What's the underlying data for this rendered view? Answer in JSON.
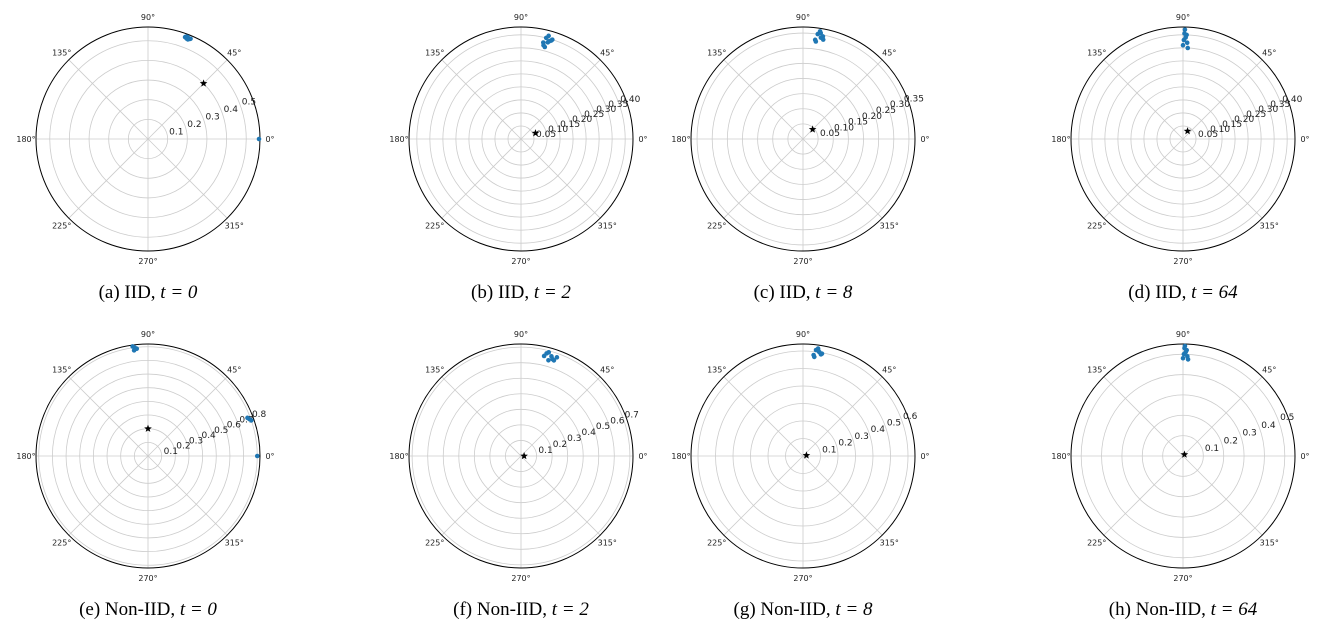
{
  "style": {
    "point_color": "#1f77b4",
    "center_color": "#000000",
    "grid_color": "#cccccc"
  },
  "angle_labels": [
    "0°",
    "45°",
    "90°",
    "135°",
    "180°",
    "225°",
    "270°",
    "315°"
  ],
  "chart_data": [
    {
      "type": "scatter",
      "projection": "polar",
      "caption_prefix": "(a) IID, ",
      "caption_t": "t = 0",
      "rlim": [
        0,
        0.57
      ],
      "rticks": [
        0.1,
        0.2,
        0.3,
        0.4,
        0.5
      ],
      "rtick_labels": [
        "0.1",
        "0.2",
        "0.3",
        "0.4",
        "0.5"
      ],
      "rlabel_angle_deg": 22.5,
      "grid": true,
      "center": {
        "theta_deg": 45,
        "r": 0.4
      },
      "points": [
        {
          "theta_deg": 68,
          "r": 0.55
        },
        {
          "theta_deg": 68.5,
          "r": 0.553
        },
        {
          "theta_deg": 69,
          "r": 0.548
        },
        {
          "theta_deg": 67.5,
          "r": 0.551
        },
        {
          "theta_deg": 69.5,
          "r": 0.556
        },
        {
          "theta_deg": 68.2,
          "r": 0.546
        },
        {
          "theta_deg": 70,
          "r": 0.552
        },
        {
          "theta_deg": 67,
          "r": 0.554
        },
        {
          "theta_deg": 68.8,
          "r": 0.557
        },
        {
          "theta_deg": 0,
          "r": 0.565
        }
      ]
    },
    {
      "type": "scatter",
      "projection": "polar",
      "caption_prefix": "(b) IID, ",
      "caption_t": "t = 2",
      "rlim": [
        0,
        0.43
      ],
      "rticks": [
        0.05,
        0.1,
        0.15,
        0.2,
        0.25,
        0.3,
        0.35,
        0.4
      ],
      "rtick_labels": [
        "0.05",
        "0.10",
        "0.15",
        "0.20",
        "0.25",
        "0.30",
        "0.35",
        "0.40"
      ],
      "rlabel_angle_deg": 22.5,
      "grid": true,
      "center": {
        "theta_deg": 22,
        "r": 0.06
      },
      "points": [
        {
          "theta_deg": 76,
          "r": 0.4
        },
        {
          "theta_deg": 74,
          "r": 0.39
        },
        {
          "theta_deg": 77,
          "r": 0.38
        },
        {
          "theta_deg": 75,
          "r": 0.41
        },
        {
          "theta_deg": 73,
          "r": 0.395
        },
        {
          "theta_deg": 76.5,
          "r": 0.37
        },
        {
          "theta_deg": 74.5,
          "r": 0.385
        },
        {
          "theta_deg": 72.5,
          "r": 0.4
        },
        {
          "theta_deg": 75.5,
          "r": 0.365
        }
      ]
    },
    {
      "type": "scatter",
      "projection": "polar",
      "caption_prefix": "(c) IID, ",
      "caption_t": "t = 8",
      "rlim": [
        0,
        0.37
      ],
      "rticks": [
        0.05,
        0.1,
        0.15,
        0.2,
        0.25,
        0.3,
        0.35
      ],
      "rtick_labels": [
        "0.05",
        "0.10",
        "0.15",
        "0.20",
        "0.25",
        "0.30",
        "0.35"
      ],
      "rlabel_angle_deg": 22.5,
      "grid": true,
      "center": {
        "theta_deg": 45,
        "r": 0.045
      },
      "points": [
        {
          "theta_deg": 82,
          "r": 0.35
        },
        {
          "theta_deg": 80,
          "r": 0.34
        },
        {
          "theta_deg": 83,
          "r": 0.33
        },
        {
          "theta_deg": 81,
          "r": 0.36
        },
        {
          "theta_deg": 79,
          "r": 0.345
        },
        {
          "theta_deg": 82.5,
          "r": 0.325
        },
        {
          "theta_deg": 80.5,
          "r": 0.355
        },
        {
          "theta_deg": 78.5,
          "r": 0.335
        }
      ]
    },
    {
      "type": "scatter",
      "projection": "polar",
      "caption_prefix": "(d) IID, ",
      "caption_t": "t = 64",
      "rlim": [
        0,
        0.43
      ],
      "rticks": [
        0.05,
        0.1,
        0.15,
        0.2,
        0.25,
        0.3,
        0.35,
        0.4
      ],
      "rtick_labels": [
        "0.05",
        "0.10",
        "0.15",
        "0.20",
        "0.25",
        "0.30",
        "0.35",
        "0.40"
      ],
      "rlabel_angle_deg": 22.5,
      "grid": true,
      "center": {
        "theta_deg": 60,
        "r": 0.035
      },
      "points": [
        {
          "theta_deg": 89,
          "r": 0.42
        },
        {
          "theta_deg": 88,
          "r": 0.4
        },
        {
          "theta_deg": 89.5,
          "r": 0.38
        },
        {
          "theta_deg": 87.5,
          "r": 0.37
        },
        {
          "theta_deg": 88.5,
          "r": 0.39
        },
        {
          "theta_deg": 90,
          "r": 0.36
        },
        {
          "theta_deg": 87,
          "r": 0.35
        },
        {
          "theta_deg": 89.2,
          "r": 0.405
        }
      ]
    },
    {
      "type": "scatter",
      "projection": "polar",
      "caption_prefix": "(e) Non-IID, ",
      "caption_t": "t = 0",
      "rlim": [
        0,
        0.82
      ],
      "rticks": [
        0.1,
        0.2,
        0.3,
        0.4,
        0.5,
        0.6,
        0.7,
        0.8
      ],
      "rtick_labels": [
        "0.1",
        "0.2",
        "0.3",
        "0.4",
        "0.5",
        "0.6",
        "0.7",
        "0.8"
      ],
      "rlabel_angle_deg": 22.5,
      "grid": true,
      "center": {
        "theta_deg": 90,
        "r": 0.2
      },
      "points": [
        {
          "theta_deg": 97,
          "r": 0.8
        },
        {
          "theta_deg": 96,
          "r": 0.79
        },
        {
          "theta_deg": 97.5,
          "r": 0.78
        },
        {
          "theta_deg": 98,
          "r": 0.81
        },
        {
          "theta_deg": 20,
          "r": 0.79
        },
        {
          "theta_deg": 19,
          "r": 0.8
        },
        {
          "theta_deg": 21,
          "r": 0.78
        },
        {
          "theta_deg": 0,
          "r": 0.8
        }
      ]
    },
    {
      "type": "scatter",
      "projection": "polar",
      "caption_prefix": "(f) Non-IID, ",
      "caption_t": "t = 2",
      "rlim": [
        0,
        0.72
      ],
      "rticks": [
        0.1,
        0.2,
        0.3,
        0.4,
        0.5,
        0.6,
        0.7
      ],
      "rtick_labels": [
        "0.1",
        "0.2",
        "0.3",
        "0.4",
        "0.5",
        "0.6",
        "0.7"
      ],
      "rlabel_angle_deg": 22.5,
      "grid": true,
      "center": {
        "theta_deg": 0,
        "r": 0.02
      },
      "points": [
        {
          "theta_deg": 76,
          "r": 0.68
        },
        {
          "theta_deg": 73,
          "r": 0.67
        },
        {
          "theta_deg": 71,
          "r": 0.65
        },
        {
          "theta_deg": 74,
          "r": 0.64
        },
        {
          "theta_deg": 77,
          "r": 0.66
        },
        {
          "theta_deg": 70,
          "r": 0.675
        },
        {
          "theta_deg": 75,
          "r": 0.69
        },
        {
          "theta_deg": 72,
          "r": 0.655
        }
      ]
    },
    {
      "type": "scatter",
      "projection": "polar",
      "caption_prefix": "(g) Non-IID, ",
      "caption_t": "t = 8",
      "rlim": [
        0,
        0.64
      ],
      "rticks": [
        0.1,
        0.2,
        0.3,
        0.4,
        0.5,
        0.6
      ],
      "rtick_labels": [
        "0.1",
        "0.2",
        "0.3",
        "0.4",
        "0.5",
        "0.6"
      ],
      "rlabel_angle_deg": 22.5,
      "grid": true,
      "center": {
        "theta_deg": 10,
        "r": 0.02
      },
      "points": [
        {
          "theta_deg": 83,
          "r": 0.61
        },
        {
          "theta_deg": 81,
          "r": 0.6
        },
        {
          "theta_deg": 84,
          "r": 0.58
        },
        {
          "theta_deg": 82,
          "r": 0.62
        },
        {
          "theta_deg": 80,
          "r": 0.59
        },
        {
          "theta_deg": 83.5,
          "r": 0.57
        },
        {
          "theta_deg": 81.5,
          "r": 0.605
        },
        {
          "theta_deg": 79.5,
          "r": 0.595
        }
      ]
    },
    {
      "type": "scatter",
      "projection": "polar",
      "caption_prefix": "(h) Non-IID, ",
      "caption_t": "t = 64",
      "rlim": [
        0,
        0.55
      ],
      "rticks": [
        0.1,
        0.2,
        0.3,
        0.4,
        0.5
      ],
      "rtick_labels": [
        "0.1",
        "0.2",
        "0.3",
        "0.4",
        "0.5"
      ],
      "rlabel_angle_deg": 22.5,
      "grid": true,
      "center": {
        "theta_deg": 45,
        "r": 0.01
      },
      "points": [
        {
          "theta_deg": 89,
          "r": 0.54
        },
        {
          "theta_deg": 88,
          "r": 0.52
        },
        {
          "theta_deg": 89.5,
          "r": 0.5
        },
        {
          "theta_deg": 87.5,
          "r": 0.49
        },
        {
          "theta_deg": 88.5,
          "r": 0.51
        },
        {
          "theta_deg": 90,
          "r": 0.48
        },
        {
          "theta_deg": 87,
          "r": 0.475
        },
        {
          "theta_deg": 89.2,
          "r": 0.53
        }
      ]
    }
  ]
}
